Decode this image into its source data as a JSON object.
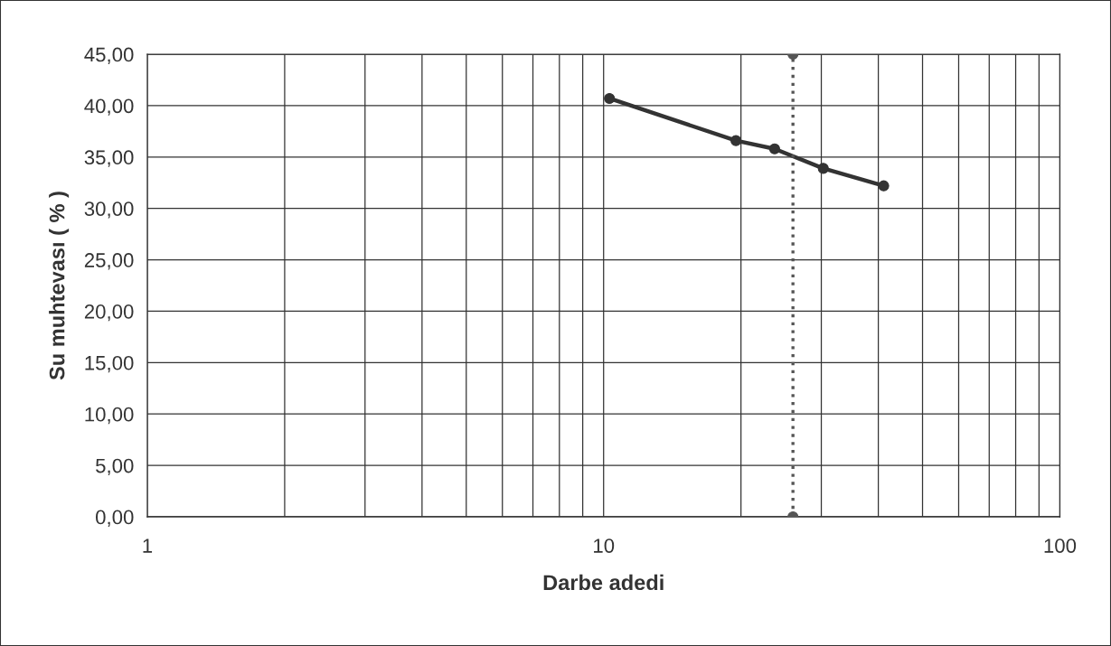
{
  "chart_data": {
    "type": "line",
    "xlabel": "Darbe adedi",
    "ylabel": "Su muhtevası ( % )",
    "log": "x",
    "grid": true,
    "xlim": [
      1,
      100
    ],
    "xticks": [
      1,
      10,
      100
    ],
    "ylim": [
      0,
      45
    ],
    "yticks": [
      {
        "value": 0,
        "label": "0,00"
      },
      {
        "value": 5,
        "label": "5,00"
      },
      {
        "value": 10,
        "label": "10,00"
      },
      {
        "value": 15,
        "label": "15,00"
      },
      {
        "value": 20,
        "label": "20,00"
      },
      {
        "value": 25,
        "label": "25,00"
      },
      {
        "value": 30,
        "label": "30,00"
      },
      {
        "value": 35,
        "label": "35,00"
      },
      {
        "value": 40,
        "label": "40,00"
      },
      {
        "value": 45,
        "label": "45,00"
      }
    ],
    "series": [
      {
        "x": [
          10.3,
          19.5,
          23.7,
          30.3,
          41.1
        ],
        "values": [
          40.7,
          36.6,
          35.8,
          33.9,
          32.2
        ],
        "color": "#333333",
        "marker": "circle",
        "line_style": "solid"
      },
      {
        "x": [
          26,
          26
        ],
        "values": [
          0,
          45
        ],
        "color": "#555555",
        "marker": "circle",
        "line_style": "dotted"
      }
    ]
  }
}
